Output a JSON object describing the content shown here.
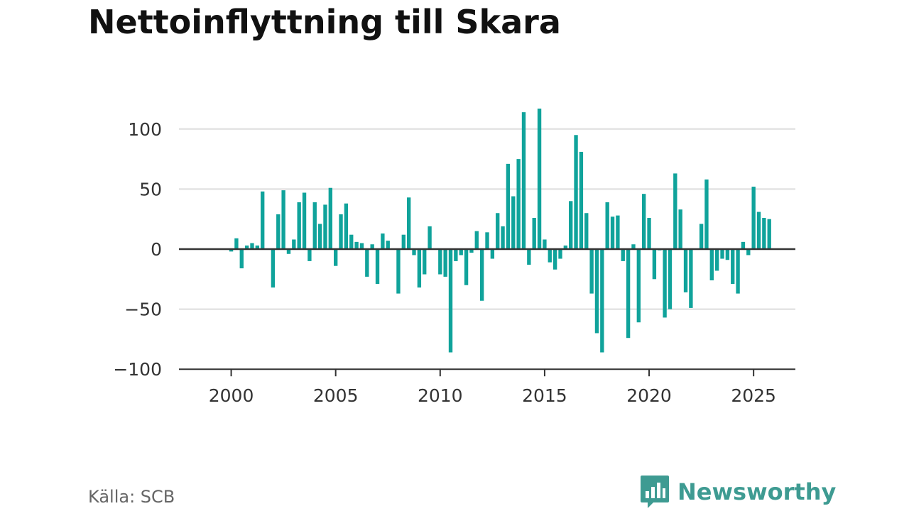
{
  "title": "Nettoinflyttning till Skara",
  "source": "Källa: SCB",
  "brand": {
    "name": "Newsworthy",
    "icon": "bar-chart-bubble-icon",
    "color": "#3e9b92"
  },
  "colors": {
    "bar": "#10a39b",
    "grid": "#dddddd",
    "axis": "#333333"
  },
  "chart_data": {
    "type": "bar",
    "title": "Nettoinflyttning till Skara",
    "xlabel": "",
    "ylabel": "",
    "grid": true,
    "x_start": 2000.0,
    "x_step": 0.25,
    "xlim": [
      1997.5,
      2027
    ],
    "ylim": [
      -100,
      120
    ],
    "x_ticks": [
      2000,
      2005,
      2010,
      2015,
      2020,
      2025
    ],
    "y_ticks": [
      100,
      50,
      0,
      -50,
      -100
    ],
    "x_tick_labels": [
      "2000",
      "2005",
      "2010",
      "2015",
      "2020",
      "2025"
    ],
    "y_tick_labels": [
      "100",
      "50",
      "0",
      "−50",
      "−100"
    ],
    "values": [
      -2,
      9,
      -16,
      3,
      5,
      3,
      48,
      0,
      -32,
      29,
      49,
      -4,
      8,
      39,
      47,
      -10,
      39,
      21,
      37,
      51,
      -14,
      29,
      38,
      12,
      6,
      5,
      -23,
      4,
      -29,
      13,
      7,
      0,
      -37,
      12,
      43,
      -5,
      -32,
      -21,
      19,
      0,
      -21,
      -23,
      -86,
      -10,
      -5,
      -30,
      -3,
      15,
      -43,
      14,
      -8,
      30,
      19,
      71,
      44,
      75,
      114,
      -13,
      26,
      117,
      8,
      -11,
      -17,
      -8,
      3,
      40,
      95,
      81,
      30,
      -37,
      -70,
      -86,
      39,
      27,
      28,
      -10,
      -74,
      4,
      -61,
      46,
      26,
      -25,
      -1,
      -57,
      -50,
      63,
      33,
      -36,
      -49,
      0,
      21,
      58,
      -26,
      -18,
      -8,
      -9,
      -29,
      -37,
      6,
      -5,
      52,
      31,
      26,
      25
    ]
  }
}
